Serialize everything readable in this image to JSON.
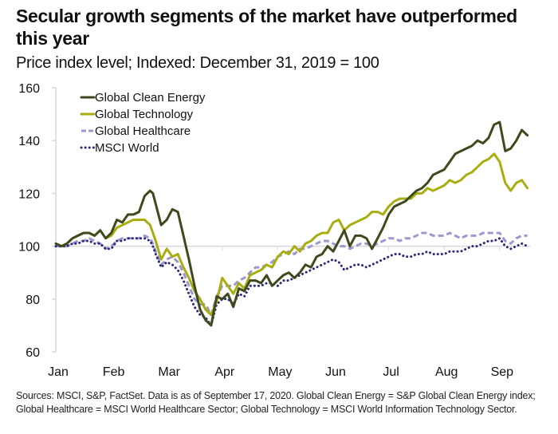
{
  "title": "Secular growth segments of the market have outperformed this year",
  "subtitle": "Price index level; Indexed: December 31, 2019 = 100",
  "footnote": "Sources: MSCI, S&P, FactSet. Data is as of September 17, 2020. Global Clean Energy = S&P Global Clean Energy index; Global Healthcare = MSCI World Healthcare Sector; Global Technology = MSCI World Information Technology Sector.",
  "chart_data": {
    "type": "line",
    "title": "Secular growth segments of the market have outperformed this year",
    "subtitle": "Price index level; Indexed: December 31, 2019 = 100",
    "xlabel": "",
    "ylabel": "",
    "x_unit": "months since Jan 1, 2020",
    "xlim": [
      0,
      8.55
    ],
    "ylim": [
      60,
      160
    ],
    "yticks": [
      60,
      80,
      100,
      120,
      140,
      160
    ],
    "xtick_labels": [
      "Jan",
      "Feb",
      "Mar",
      "Apr",
      "May",
      "Jun",
      "Jul",
      "Aug",
      "Sep"
    ],
    "xtick_positions": [
      0,
      1,
      2,
      3,
      4,
      5,
      6,
      7,
      8
    ],
    "grid": false,
    "reference_line": 100,
    "legend_position": "top-left",
    "series": [
      {
        "name": "Global Clean Energy",
        "color": "#3d4a1e",
        "style": "solid",
        "x": [
          0,
          0.1,
          0.2,
          0.3,
          0.4,
          0.5,
          0.6,
          0.7,
          0.8,
          0.9,
          1.0,
          1.1,
          1.2,
          1.3,
          1.4,
          1.5,
          1.6,
          1.7,
          1.75,
          1.8,
          1.9,
          2.0,
          2.1,
          2.2,
          2.3,
          2.4,
          2.5,
          2.6,
          2.7,
          2.8,
          2.9,
          3.0,
          3.1,
          3.2,
          3.3,
          3.4,
          3.5,
          3.6,
          3.7,
          3.8,
          3.9,
          4.0,
          4.1,
          4.2,
          4.3,
          4.4,
          4.5,
          4.6,
          4.7,
          4.8,
          4.9,
          5.0,
          5.1,
          5.2,
          5.3,
          5.4,
          5.5,
          5.6,
          5.7,
          5.8,
          5.9,
          6.0,
          6.1,
          6.2,
          6.3,
          6.4,
          6.5,
          6.6,
          6.7,
          6.8,
          6.9,
          7.0,
          7.1,
          7.2,
          7.3,
          7.4,
          7.5,
          7.6,
          7.7,
          7.8,
          7.9,
          8.0,
          8.1,
          8.2,
          8.3,
          8.4,
          8.5
        ],
        "values": [
          101,
          100,
          101,
          103,
          104,
          105,
          105,
          104,
          106,
          103,
          105,
          110,
          109,
          112,
          112,
          113,
          119,
          121,
          120,
          116,
          108,
          110,
          114,
          113,
          104,
          95,
          85,
          76,
          72,
          70,
          81,
          80,
          82,
          77,
          84,
          83,
          87,
          87,
          86,
          89,
          85,
          87,
          89,
          90,
          88,
          90,
          93,
          92,
          96,
          97,
          100,
          98,
          102,
          106,
          100,
          104,
          104,
          103,
          99,
          103,
          107,
          112,
          115,
          116,
          117,
          119,
          121,
          122,
          124,
          127,
          128,
          129,
          132,
          135,
          136,
          137,
          138,
          140,
          139,
          141,
          146,
          147,
          136,
          137,
          140,
          144,
          142
        ]
      },
      {
        "name": "Global Technology",
        "color": "#a8ad10",
        "style": "solid",
        "x": [
          0,
          0.1,
          0.2,
          0.3,
          0.4,
          0.5,
          0.6,
          0.7,
          0.8,
          0.9,
          1.0,
          1.1,
          1.2,
          1.3,
          1.4,
          1.5,
          1.6,
          1.7,
          1.75,
          1.8,
          1.9,
          2.0,
          2.1,
          2.2,
          2.3,
          2.4,
          2.5,
          2.6,
          2.7,
          2.8,
          2.9,
          3.0,
          3.1,
          3.2,
          3.3,
          3.4,
          3.5,
          3.6,
          3.7,
          3.8,
          3.9,
          4.0,
          4.1,
          4.2,
          4.3,
          4.4,
          4.5,
          4.6,
          4.7,
          4.8,
          4.9,
          5.0,
          5.1,
          5.2,
          5.3,
          5.4,
          5.5,
          5.6,
          5.7,
          5.8,
          5.9,
          6.0,
          6.1,
          6.2,
          6.3,
          6.4,
          6.5,
          6.6,
          6.7,
          6.8,
          6.9,
          7.0,
          7.1,
          7.2,
          7.3,
          7.4,
          7.5,
          7.6,
          7.7,
          7.8,
          7.9,
          8.0,
          8.1,
          8.2,
          8.3,
          8.4,
          8.5
        ],
        "values": [
          101,
          100,
          101,
          103,
          104,
          105,
          105,
          104,
          106,
          103,
          104,
          107,
          108,
          109,
          110,
          110,
          110,
          108,
          105,
          102,
          95,
          99,
          96,
          97,
          92,
          88,
          83,
          80,
          76,
          74,
          79,
          88,
          85,
          82,
          86,
          84,
          89,
          90,
          91,
          93,
          92,
          96,
          98,
          97,
          100,
          98,
          101,
          102,
          104,
          105,
          105,
          109,
          110,
          106,
          108,
          109,
          110,
          111,
          113,
          113,
          112,
          115,
          117,
          118,
          118,
          118,
          120,
          120,
          122,
          121,
          122,
          123,
          125,
          124,
          125,
          127,
          128,
          130,
          132,
          133,
          135,
          132,
          124,
          121,
          124,
          125,
          122
        ]
      },
      {
        "name": "Global Healthcare",
        "color": "#9c98d0",
        "style": "dashed",
        "x": [
          0,
          0.1,
          0.2,
          0.3,
          0.4,
          0.5,
          0.6,
          0.7,
          0.8,
          0.9,
          1.0,
          1.1,
          1.2,
          1.3,
          1.4,
          1.5,
          1.6,
          1.7,
          1.75,
          1.8,
          1.9,
          2.0,
          2.1,
          2.2,
          2.3,
          2.4,
          2.5,
          2.6,
          2.7,
          2.8,
          2.9,
          3.0,
          3.1,
          3.2,
          3.3,
          3.4,
          3.5,
          3.6,
          3.7,
          3.8,
          3.9,
          4.0,
          4.1,
          4.2,
          4.3,
          4.4,
          4.5,
          4.6,
          4.7,
          4.8,
          4.9,
          5.0,
          5.1,
          5.2,
          5.3,
          5.4,
          5.5,
          5.6,
          5.7,
          5.8,
          5.9,
          6.0,
          6.1,
          6.2,
          6.3,
          6.4,
          6.5,
          6.6,
          6.7,
          6.8,
          6.9,
          7.0,
          7.1,
          7.2,
          7.3,
          7.4,
          7.5,
          7.6,
          7.7,
          7.8,
          7.9,
          8.0,
          8.1,
          8.2,
          8.3,
          8.4,
          8.5
        ],
        "values": [
          100,
          100,
          100,
          101,
          102,
          102,
          103,
          102,
          101,
          99,
          100,
          102,
          103,
          103,
          103,
          103,
          104,
          103,
          101,
          98,
          93,
          95,
          96,
          94,
          90,
          85,
          80,
          78,
          78,
          74,
          81,
          85,
          85,
          85,
          87,
          88,
          90,
          92,
          92,
          93,
          94,
          96,
          97,
          98,
          97,
          99,
          99,
          100,
          101,
          102,
          102,
          101,
          100,
          100,
          99,
          100,
          101,
          101,
          100,
          101,
          102,
          103,
          103,
          102,
          103,
          103,
          104,
          105,
          105,
          104,
          104,
          104,
          105,
          104,
          103,
          104,
          104,
          104,
          105,
          105,
          105,
          105,
          102,
          101,
          103,
          104,
          104
        ]
      },
      {
        "name": "MSCI World",
        "color": "#2a2a7a",
        "style": "dotted",
        "x": [
          0,
          0.1,
          0.2,
          0.3,
          0.4,
          0.5,
          0.6,
          0.7,
          0.8,
          0.9,
          1.0,
          1.1,
          1.2,
          1.3,
          1.4,
          1.5,
          1.6,
          1.7,
          1.75,
          1.8,
          1.9,
          2.0,
          2.1,
          2.2,
          2.3,
          2.4,
          2.5,
          2.6,
          2.7,
          2.8,
          2.9,
          3.0,
          3.1,
          3.2,
          3.3,
          3.4,
          3.5,
          3.6,
          3.7,
          3.8,
          3.9,
          4.0,
          4.1,
          4.2,
          4.3,
          4.4,
          4.5,
          4.6,
          4.7,
          4.8,
          4.9,
          5.0,
          5.1,
          5.2,
          5.3,
          5.4,
          5.5,
          5.6,
          5.7,
          5.8,
          5.9,
          6.0,
          6.1,
          6.2,
          6.3,
          6.4,
          6.5,
          6.6,
          6.7,
          6.8,
          6.9,
          7.0,
          7.1,
          7.2,
          7.3,
          7.4,
          7.5,
          7.6,
          7.7,
          7.8,
          7.9,
          8.0,
          8.1,
          8.2,
          8.3,
          8.4,
          8.5
        ],
        "values": [
          100,
          100,
          100,
          101,
          101,
          102,
          102,
          101,
          101,
          99,
          99,
          102,
          102,
          103,
          103,
          103,
          103,
          102,
          100,
          97,
          92,
          94,
          93,
          91,
          87,
          82,
          77,
          74,
          73,
          70,
          78,
          80,
          80,
          78,
          82,
          81,
          85,
          85,
          85,
          86,
          86,
          85,
          87,
          87,
          88,
          89,
          90,
          91,
          92,
          93,
          94,
          95,
          94,
          91,
          92,
          93,
          93,
          92,
          93,
          94,
          95,
          96,
          97,
          97,
          96,
          96,
          97,
          97,
          98,
          97,
          97,
          97,
          98,
          98,
          98,
          99,
          100,
          100,
          101,
          102,
          102,
          103,
          100,
          99,
          100,
          101,
          100
        ]
      }
    ]
  }
}
